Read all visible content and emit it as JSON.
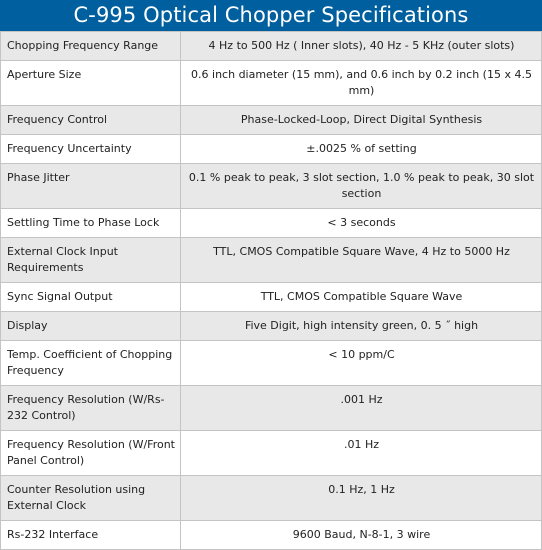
{
  "header": {
    "title": "C-995 Optical Chopper Specifications",
    "background_color": "#005f9e"
  },
  "specs": [
    {
      "label": "Chopping Frequency Range",
      "value": "4 Hz to 500 Hz ( Inner slots), 40 Hz - 5 KHz (outer slots)"
    },
    {
      "label": "Aperture Size",
      "value": "0.6 inch diameter (15 mm), and 0.6 inch by 0.2 inch (15 x 4.5 mm)"
    },
    {
      "label": "Frequency Control",
      "value": "Phase-Locked-Loop, Direct Digital Synthesis"
    },
    {
      "label": "Frequency Uncertainty",
      "value": "±.0025 % of setting"
    },
    {
      "label": "Phase Jitter",
      "value": "0.1 % peak to peak, 3 slot section, 1.0 % peak to peak, 30 slot section"
    },
    {
      "label": "Settling Time to Phase Lock",
      "value": "< 3 seconds"
    },
    {
      "label": "External Clock Input Requirements",
      "value": "TTL, CMOS Compatible Square Wave, 4 Hz to 5000 Hz"
    },
    {
      "label": "Sync Signal Output",
      "value": "TTL, CMOS Compatible Square Wave"
    },
    {
      "label": "Display",
      "value": "Five Digit, high intensity green, 0. 5 ˝ high"
    },
    {
      "label": "Temp. Coefficient of Chopping Frequency",
      "value": "< 10 ppm/C"
    },
    {
      "label": "Frequency Resolution (W/Rs-232 Control)",
      "value": ".001 Hz"
    },
    {
      "label": "Frequency Resolution (W/Front Panel Control)",
      "value": ".01 Hz"
    },
    {
      "label": "Counter Resolution using External Clock",
      "value": "0.1 Hz, 1 Hz"
    },
    {
      "label": "Rs-232 Interface",
      "value": "9600 Baud, N-8-1, 3 wire"
    }
  ],
  "colors": {
    "row_shaded": "#e8e8e8",
    "row_plain": "#ffffff",
    "border": "#c4c4c4"
  }
}
